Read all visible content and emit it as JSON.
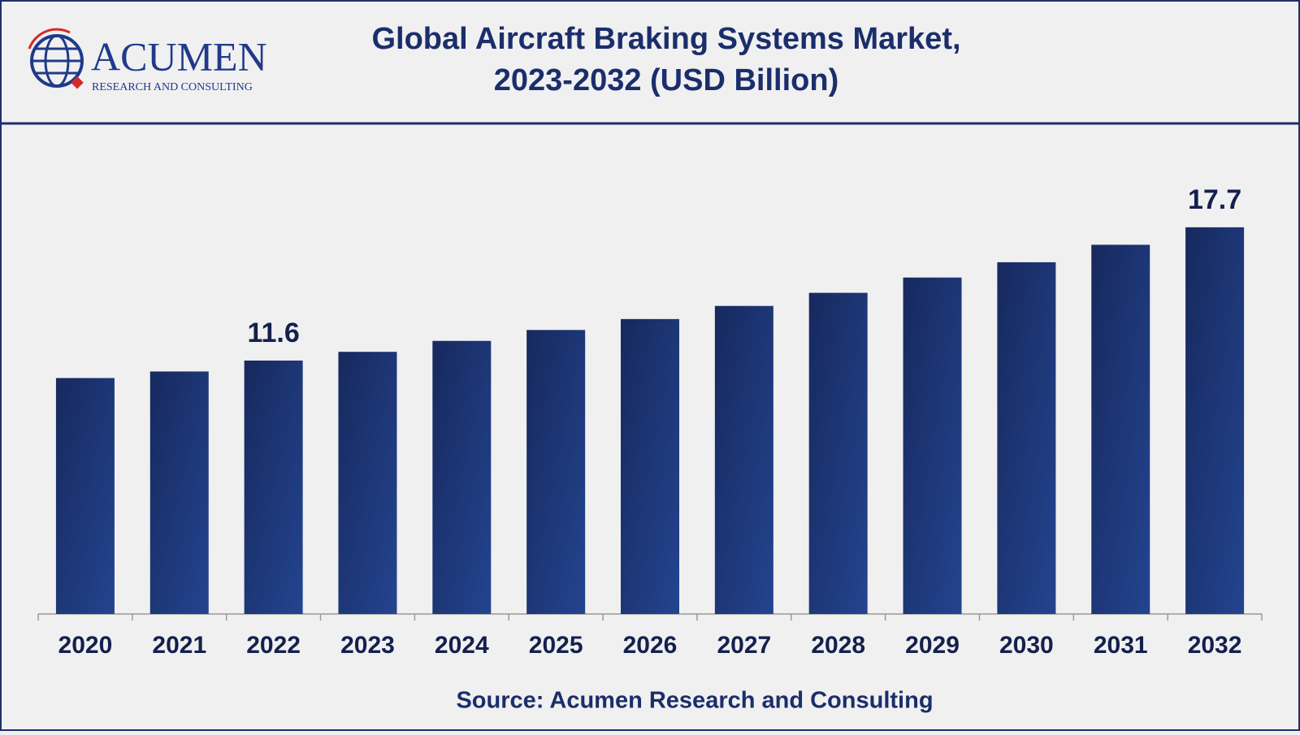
{
  "logo": {
    "name": "ACUMEN",
    "tagline": "RESEARCH AND CONSULTING"
  },
  "chart_data": {
    "type": "bar",
    "title": "Global Aircraft Braking Systems Market,",
    "subtitle": "2023-2032 (USD Billion)",
    "source": "Source: Acumen Research and Consulting",
    "categories": [
      "2020",
      "2021",
      "2022",
      "2023",
      "2024",
      "2025",
      "2026",
      "2027",
      "2028",
      "2029",
      "2030",
      "2031",
      "2032"
    ],
    "values": [
      10.8,
      11.1,
      11.6,
      12.0,
      12.5,
      13.0,
      13.5,
      14.1,
      14.7,
      15.4,
      16.1,
      16.9,
      17.7
    ],
    "show_value_label": [
      false,
      false,
      true,
      false,
      false,
      false,
      false,
      false,
      false,
      false,
      false,
      false,
      true
    ],
    "color": "#23448f",
    "ylim": [
      0,
      20
    ],
    "grid": false
  }
}
